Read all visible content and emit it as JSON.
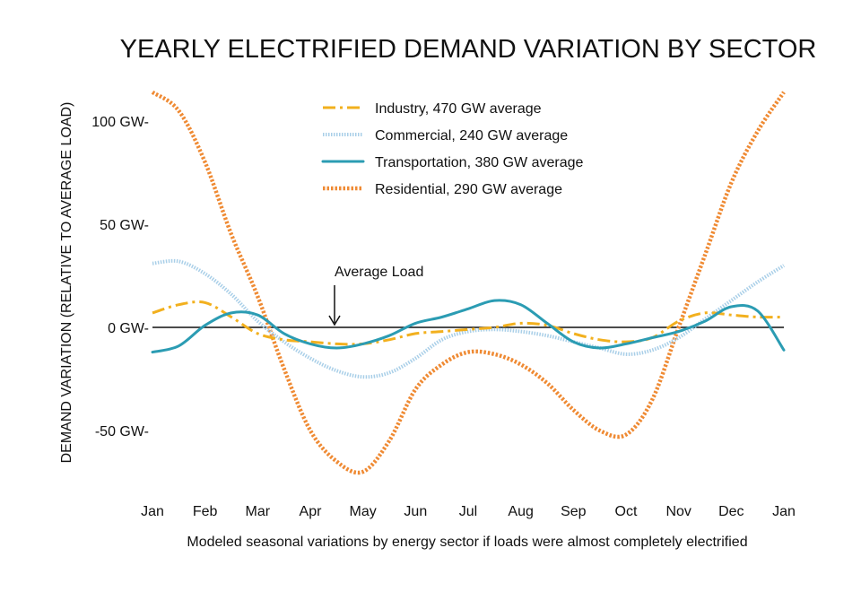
{
  "chart_data": {
    "type": "line",
    "title": "YEARLY ELECTRIFIED DEMAND VARIATION BY SECTOR",
    "xlabel": "Modeled seasonal variations by energy sector if loads were almost completely electrified",
    "ylabel": "DEMAND VARIATION (RELATIVE TO AVERAGE LOAD)",
    "categories": [
      "Jan",
      "Feb",
      "Mar",
      "Apr",
      "May",
      "Jun",
      "Jul",
      "Aug",
      "Sep",
      "Oct",
      "Nov",
      "Dec",
      "Jan"
    ],
    "y_ticks": [
      {
        "value": 100,
        "label": "100 GW-"
      },
      {
        "value": 50,
        "label": "50 GW-"
      },
      {
        "value": 0,
        "label": "0 GW-"
      },
      {
        "value": -50,
        "label": "-50 GW-"
      }
    ],
    "ylim": [
      -80,
      115
    ],
    "xlim": [
      0,
      12
    ],
    "grid": false,
    "legend_position": "top-center",
    "annotation": {
      "text": "Average Load",
      "x": 3.5,
      "y": 0
    },
    "series": [
      {
        "name": "Industry, 470 GW average",
        "color": "#f2b01e",
        "style": "dash-dot",
        "x": [
          0,
          0.5,
          1,
          1.5,
          2,
          2.5,
          3,
          3.5,
          4,
          4.5,
          5,
          5.5,
          6,
          6.5,
          7,
          7.5,
          8,
          8.5,
          9,
          9.5,
          10,
          10.5,
          11,
          11.5,
          12
        ],
        "values": [
          7,
          11,
          12,
          5,
          -3,
          -6,
          -7,
          -8,
          -8,
          -6,
          -3,
          -2,
          -1,
          0,
          2,
          1,
          -3,
          -6,
          -7,
          -5,
          3,
          7,
          6,
          5,
          5
        ]
      },
      {
        "name": "Commercial, 240 GW average",
        "color": "#a9cfe8",
        "style": "dotted",
        "x": [
          0,
          0.5,
          1,
          1.5,
          2,
          2.5,
          3,
          3.5,
          4,
          4.5,
          5,
          5.5,
          6,
          6.5,
          7,
          7.5,
          8,
          8.5,
          9,
          9.5,
          10,
          10.5,
          11,
          11.5,
          12
        ],
        "values": [
          31,
          32,
          26,
          16,
          3,
          -7,
          -15,
          -21,
          -24,
          -22,
          -15,
          -6,
          -2,
          -1,
          -2,
          -4,
          -7,
          -10,
          -13,
          -11,
          -5,
          4,
          13,
          22,
          30
        ]
      },
      {
        "name": "Transportation, 380 GW average",
        "color": "#2b9cb3",
        "style": "solid",
        "x": [
          0,
          0.5,
          1,
          1.5,
          2,
          2.5,
          3,
          3.5,
          4,
          4.5,
          5,
          5.5,
          6,
          6.5,
          7,
          7.5,
          8,
          8.5,
          9,
          9.5,
          10,
          10.5,
          11,
          11.5,
          12
        ],
        "values": [
          -12,
          -9,
          1,
          7,
          6,
          -3,
          -8,
          -10,
          -8,
          -4,
          2,
          5,
          9,
          13,
          11,
          2,
          -7,
          -10,
          -8,
          -5,
          -2,
          3,
          10,
          8,
          -11
        ]
      },
      {
        "name": "Residential, 290 GW average",
        "color": "#ef8a33",
        "style": "dotted-heavy",
        "x": [
          0,
          0.5,
          1,
          1.5,
          2,
          2.5,
          3,
          3.5,
          4,
          4.5,
          5,
          5.5,
          6,
          6.5,
          7,
          7.5,
          8,
          8.5,
          9,
          9.5,
          10,
          10.5,
          11,
          11.5,
          12
        ],
        "values": [
          114,
          105,
          80,
          45,
          15,
          -20,
          -50,
          -65,
          -70,
          -55,
          -30,
          -18,
          -12,
          -13,
          -18,
          -27,
          -40,
          -50,
          -52,
          -35,
          0,
          35,
          70,
          95,
          114
        ]
      }
    ]
  }
}
